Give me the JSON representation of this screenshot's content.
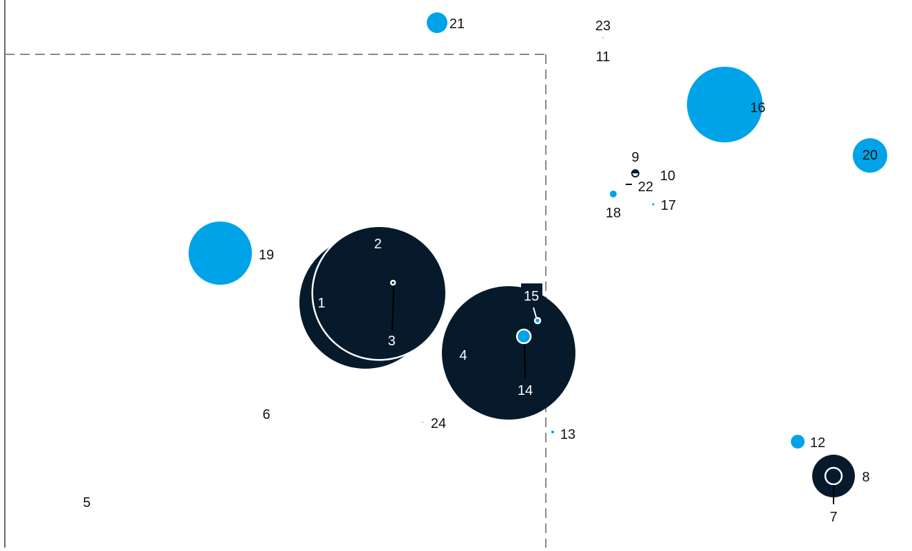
{
  "chart_data": {
    "type": "scatter",
    "title": "",
    "xlabel": "",
    "ylabel": "",
    "grid": false,
    "legend": "none",
    "colors": {
      "dark": "#061a2b",
      "blue": "#00a3e8",
      "white": "#ffffff",
      "label": "#111111",
      "axis": "#666666",
      "threshold": "#888888"
    },
    "reference_lines": [
      {
        "orientation": "horizontal",
        "style": "dashed"
      },
      {
        "orientation": "vertical",
        "style": "dashed"
      }
    ],
    "points": [
      {
        "id": "1",
        "color": "dark"
      },
      {
        "id": "2",
        "color": "dark"
      },
      {
        "id": "3",
        "color": "dark"
      },
      {
        "id": "4",
        "color": "dark"
      },
      {
        "id": "5",
        "color": "none"
      },
      {
        "id": "6",
        "color": "none"
      },
      {
        "id": "7",
        "color": "dark"
      },
      {
        "id": "8",
        "color": "dark"
      },
      {
        "id": "9",
        "color": "dark"
      },
      {
        "id": "10",
        "color": "none"
      },
      {
        "id": "11",
        "color": "none"
      },
      {
        "id": "12",
        "color": "blue"
      },
      {
        "id": "13",
        "color": "blue"
      },
      {
        "id": "14",
        "color": "blue"
      },
      {
        "id": "15",
        "color": "blue"
      },
      {
        "id": "16",
        "color": "blue"
      },
      {
        "id": "17",
        "color": "blue"
      },
      {
        "id": "18",
        "color": "blue"
      },
      {
        "id": "19",
        "color": "blue"
      },
      {
        "id": "20",
        "color": "blue"
      },
      {
        "id": "21",
        "color": "blue"
      },
      {
        "id": "22",
        "color": "dark"
      },
      {
        "id": "23",
        "color": "blue"
      },
      {
        "id": "24",
        "color": "blue"
      }
    ]
  }
}
